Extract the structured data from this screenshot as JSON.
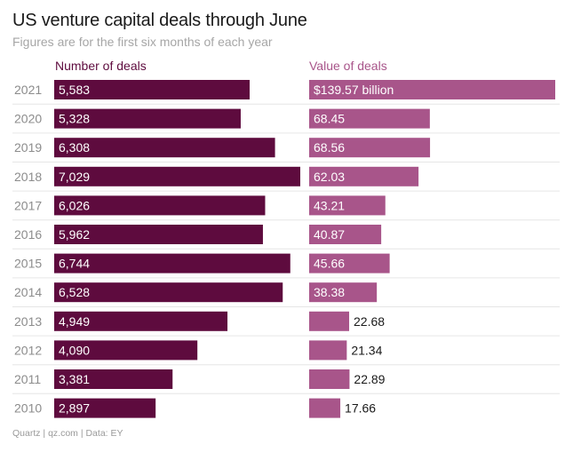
{
  "header": {
    "title": "US venture capital deals through June",
    "subtitle": "Figures are for the first six months of each year"
  },
  "footer": {
    "source": "Quartz | qz.com | Data: EY"
  },
  "colors": {
    "deals_bar": "#5e0b3e",
    "value_bar": "#a8558a",
    "deals_head": "#5e0b3e",
    "value_head": "#a8558a",
    "grid": "#e6e6e6",
    "year_label": "#8c8c8c"
  },
  "chart_data": {
    "type": "bar",
    "orientation": "horizontal",
    "categories": [
      "2021",
      "2020",
      "2019",
      "2018",
      "2017",
      "2016",
      "2015",
      "2014",
      "2013",
      "2012",
      "2011",
      "2010"
    ],
    "series": [
      {
        "name": "Number of deals",
        "values": [
          5583,
          5328,
          6308,
          7029,
          6026,
          5962,
          6744,
          6528,
          4949,
          4090,
          3381,
          2897
        ],
        "labels": [
          "5,583",
          "5,328",
          "6,308",
          "7,029",
          "6,026",
          "5,962",
          "6,744",
          "6,528",
          "4,949",
          "4,090",
          "3,381",
          "2,897"
        ]
      },
      {
        "name": "Value of deals",
        "values": [
          139.57,
          68.45,
          68.56,
          62.03,
          43.21,
          40.87,
          45.66,
          38.38,
          22.68,
          21.34,
          22.89,
          17.66
        ],
        "labels": [
          "$139.57 billion",
          "68.45",
          "68.56",
          "62.03",
          "43.21",
          "40.87",
          "45.66",
          "38.38",
          "22.68",
          "21.34",
          "22.89",
          "17.66"
        ]
      }
    ],
    "title": "US venture capital deals through June",
    "xlim": [
      [
        0,
        7029
      ],
      [
        0,
        139.57
      ]
    ]
  }
}
